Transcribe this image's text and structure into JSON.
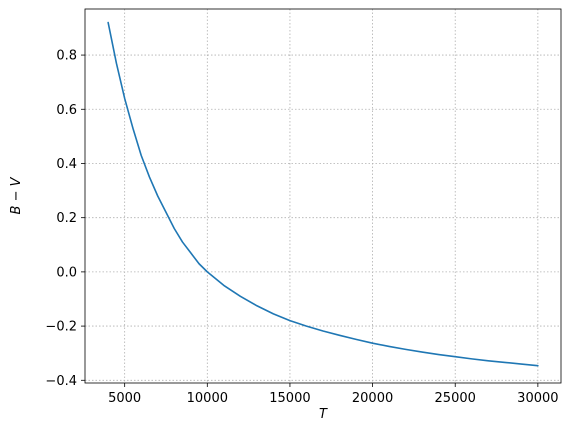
{
  "chart_data": {
    "type": "line",
    "title": "",
    "xlabel": "T",
    "ylabel": "B − V",
    "xlim": [
      2600,
      31400
    ],
    "ylim": [
      -0.41,
      0.97
    ],
    "xticks": [
      5000,
      10000,
      15000,
      20000,
      25000,
      30000
    ],
    "xtick_labels": [
      "5000",
      "10000",
      "15000",
      "20000",
      "25000",
      "30000"
    ],
    "yticks": [
      -0.4,
      -0.2,
      0.0,
      0.2,
      0.4,
      0.6,
      0.8
    ],
    "ytick_labels": [
      "−0.4",
      "−0.2",
      "0.0",
      "0.2",
      "0.4",
      "0.6",
      "0.8"
    ],
    "grid": true,
    "color": "#1f77b4",
    "series": [
      {
        "x": [
          4000,
          4500,
          5000,
          5500,
          6000,
          6500,
          7000,
          7500,
          8000,
          8500,
          9000,
          9500,
          10000,
          11000,
          12000,
          13000,
          14000,
          15000,
          16000,
          17000,
          18000,
          19000,
          20000,
          21000,
          22000,
          23000,
          24000,
          25000,
          26000,
          27000,
          28000,
          29000,
          30000
        ],
        "y": [
          0.92,
          0.77,
          0.64,
          0.53,
          0.43,
          0.35,
          0.28,
          0.22,
          0.16,
          0.11,
          0.07,
          0.03,
          0.0,
          -0.05,
          -0.09,
          -0.125,
          -0.155,
          -0.18,
          -0.2,
          -0.218,
          -0.234,
          -0.249,
          -0.263,
          -0.275,
          -0.286,
          -0.296,
          -0.305,
          -0.313,
          -0.321,
          -0.328,
          -0.334,
          -0.34,
          -0.346
        ]
      }
    ]
  }
}
